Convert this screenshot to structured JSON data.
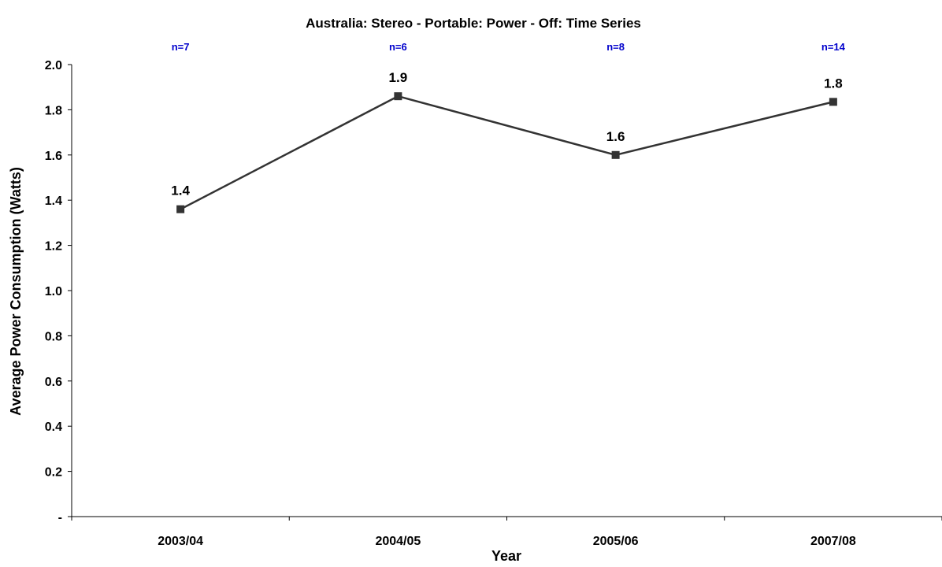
{
  "chart_data": {
    "type": "line",
    "title": "Australia: Stereo - Portable: Power - Off: Time Series",
    "xlabel": "Year",
    "ylabel": "Average Power Consumption (Watts)",
    "categories": [
      "2003/04",
      "2004/05",
      "2005/06",
      "2007/08"
    ],
    "sample_sizes": [
      "n=7",
      "n=6",
      "n=8",
      "n=14"
    ],
    "series": [
      {
        "values": [
          1.36,
          1.86,
          1.6,
          1.835
        ],
        "labels": [
          "1.4",
          "1.9",
          "1.6",
          "1.8"
        ]
      }
    ],
    "ylim": [
      0,
      2.0
    ],
    "yticks": [
      0,
      0.2,
      0.4,
      0.6,
      0.8,
      1.0,
      1.2,
      1.4,
      1.6,
      1.8,
      2.0
    ],
    "yticklabels": [
      "-",
      "0.2",
      "0.4",
      "0.6",
      "0.8",
      "1.0",
      "1.2",
      "1.4",
      "1.6",
      "1.8",
      "2.0"
    ],
    "grid": false,
    "legend": "none",
    "colors": {
      "line": "#333333",
      "marker": "#333333",
      "axis": "#000000",
      "sample_size_text": "#0000cc",
      "text": "#000000"
    }
  }
}
